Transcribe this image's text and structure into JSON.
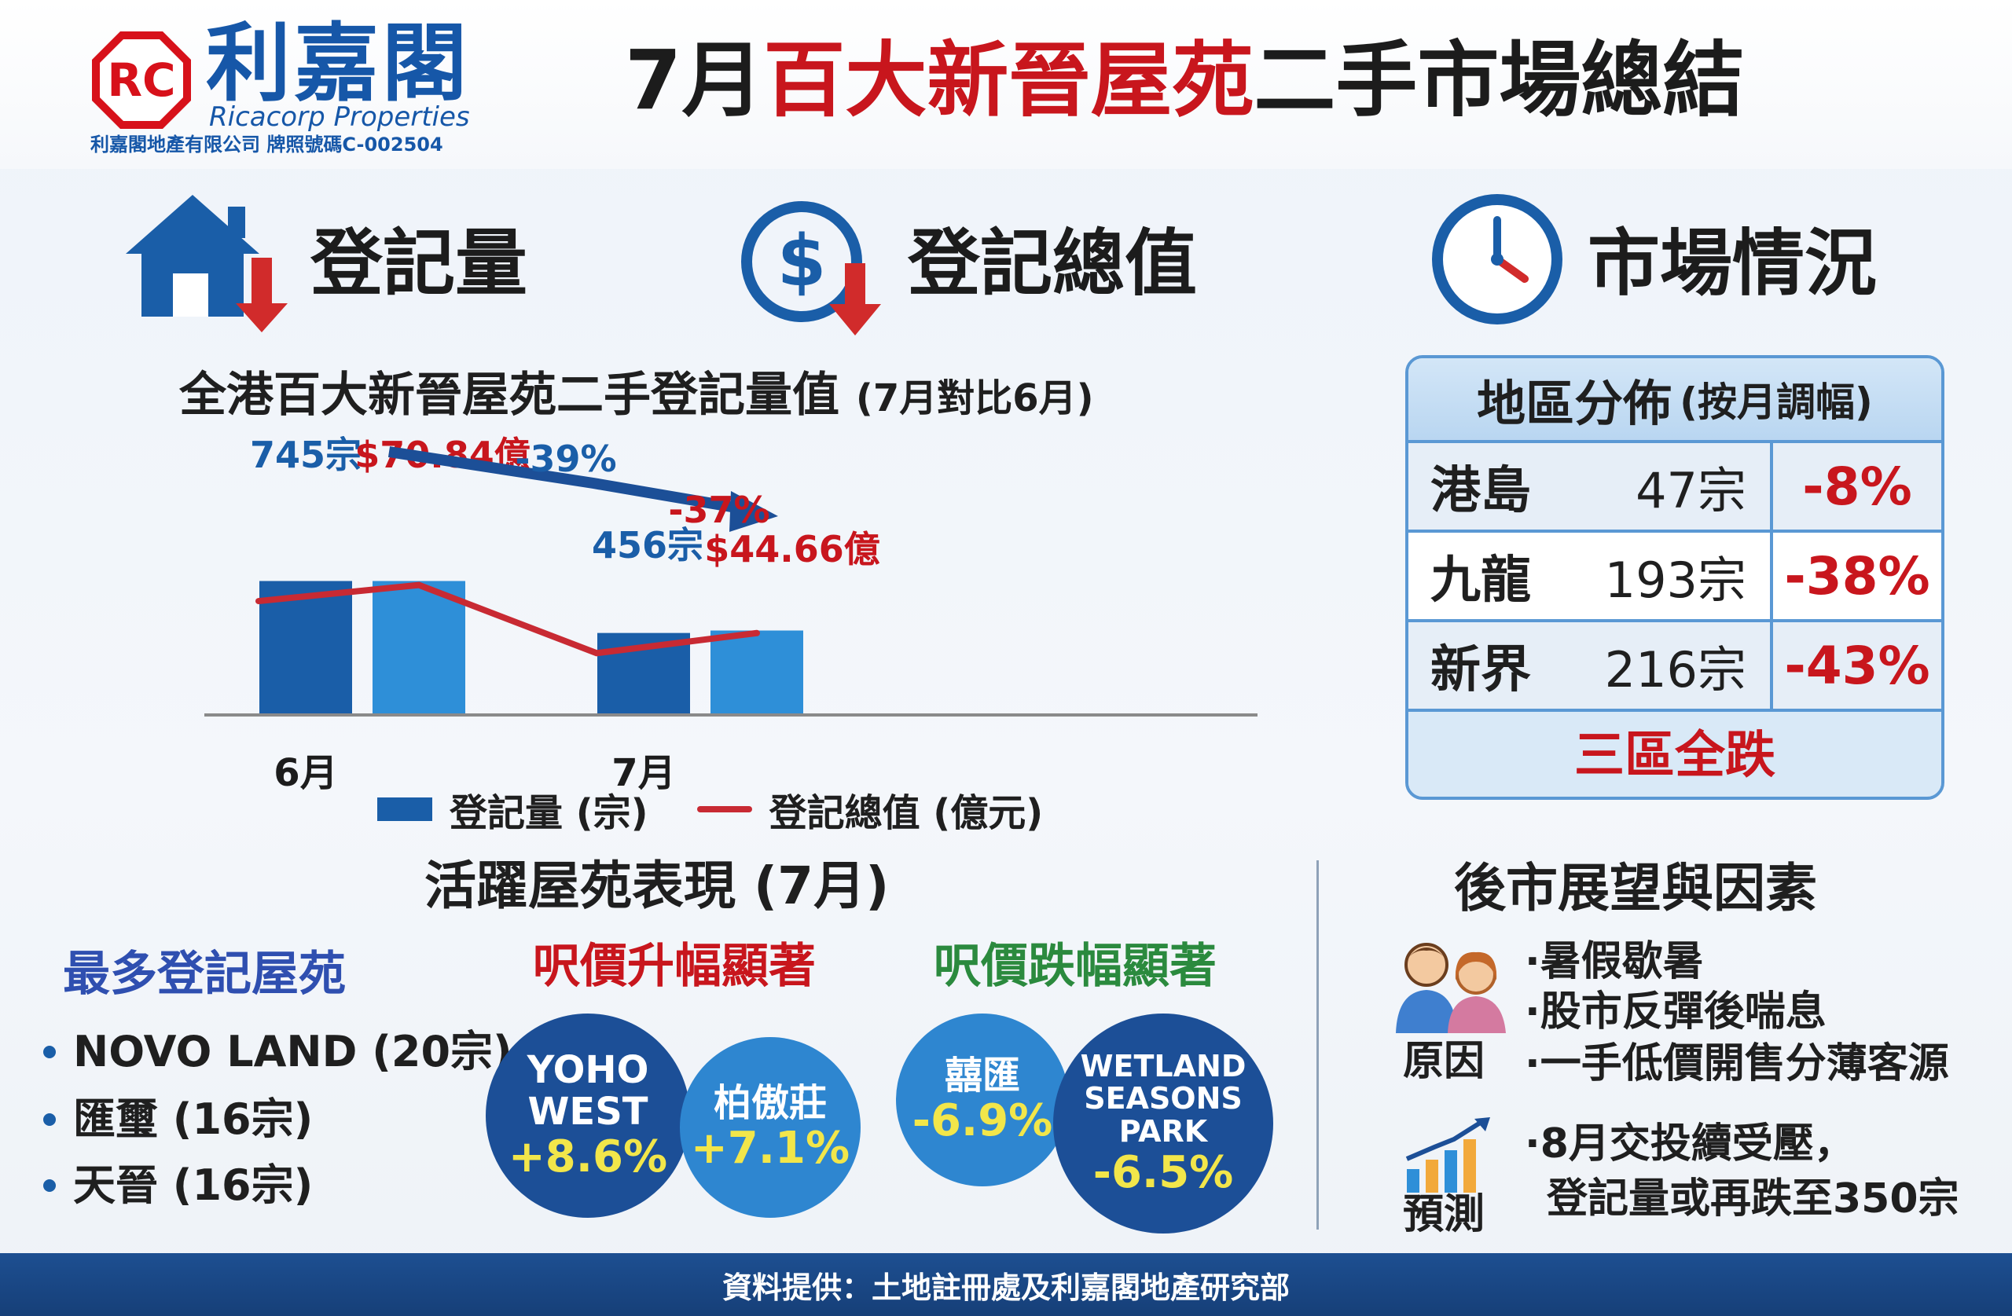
{
  "brand": {
    "name_zh": "利嘉閣",
    "name_en": "Ricacorp Properties",
    "license": "利嘉閣地產有限公司 牌照號碼C-002504",
    "logo_text": "RC"
  },
  "title": {
    "prefix": "7月",
    "highlight": "百大新晉屋苑",
    "suffix": "二手市場總結"
  },
  "sections": {
    "reg_volume": "登記量",
    "reg_value": "登記總值",
    "market": "市場情況"
  },
  "icons": {
    "house": "house-down-icon",
    "dollar": "dollar-down-icon",
    "clock": "clock-icon",
    "people": "people-icon",
    "growth": "growth-chart-icon"
  },
  "chart_data": {
    "type": "bar",
    "title": "全港百大新晉屋苑二手登記量值",
    "subtitle": "(7月對比6月)",
    "categories": [
      "6月",
      "7月"
    ],
    "series": [
      {
        "name": "登記量 (宗)",
        "type": "bar",
        "values": [
          745,
          456
        ],
        "labels": [
          "745宗",
          "456宗"
        ],
        "color": "#1a5ea8"
      },
      {
        "name": "登記總值 (億元)",
        "type": "bar+line",
        "values": [
          70.84,
          44.66
        ],
        "labels": [
          "$70.84億",
          "$44.66億"
        ],
        "color": "#2e8fd8",
        "line_color": "#c82a33"
      }
    ],
    "annotations": {
      "volume_change": "-39%",
      "value_change": "-37%"
    },
    "legend": [
      "登記量 (宗)",
      "登記總值 (億元)"
    ],
    "legend_position": "bottom"
  },
  "district": {
    "header": "地區分佈",
    "header_sub": "(按月調幅)",
    "rows": [
      {
        "name": "港島",
        "count": "47宗",
        "change": "-8%"
      },
      {
        "name": "九龍",
        "count": "193宗",
        "change": "-38%"
      },
      {
        "name": "新界",
        "count": "216宗",
        "change": "-43%"
      }
    ],
    "footer": "三區全跌"
  },
  "active": {
    "title": "活躍屋苑表現 (7月)",
    "most_title": "最多登記屋苑",
    "most_items": [
      "NOVO LAND (20宗)",
      "匯璽 (16宗)",
      "天晉 (16宗)"
    ],
    "up_title": "呎價升幅顯著",
    "down_title": "呎價跌幅顯著",
    "up_items": [
      {
        "name_line1": "YOHO",
        "name_line2": "WEST",
        "pct": "+8.6%"
      },
      {
        "name_line1": "柏傲莊",
        "name_line2": "",
        "pct": "+7.1%"
      }
    ],
    "down_items": [
      {
        "name_line1": "囍匯",
        "name_line2": "",
        "pct": "-6.9%"
      },
      {
        "name_line1": "WETLAND",
        "name_line2": "SEASONS PARK",
        "pct": "-6.5%"
      }
    ]
  },
  "outlook": {
    "title": "後市展望與因素",
    "reason_label": "原因",
    "reasons": [
      "·暑假歇暑",
      "·股市反彈後喘息",
      "·一手低價開售分薄客源"
    ],
    "forecast_label": "預測",
    "forecast": [
      "·8月交投續受壓，",
      "登記量或再跌至350宗"
    ]
  },
  "footer": "資料提供：土地註冊處及利嘉閣地產研究部"
}
